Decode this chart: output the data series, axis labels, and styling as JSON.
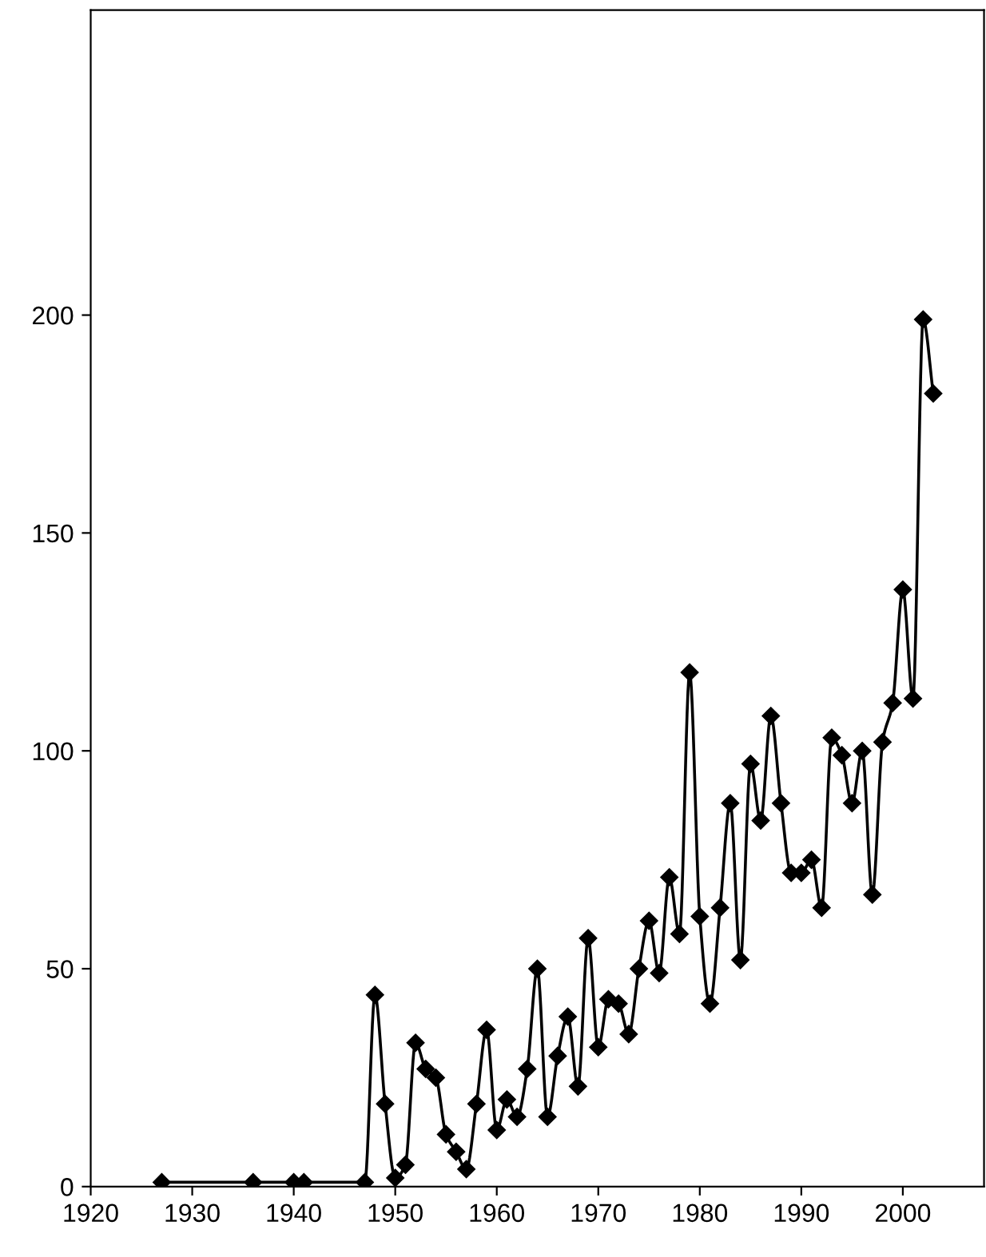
{
  "chart_data": {
    "type": "line",
    "marker": "diamond",
    "line_style": "solid",
    "grid": false,
    "legend": false,
    "xlim": [
      1920,
      2008
    ],
    "xticks": [
      1920,
      1930,
      1940,
      1950,
      1960,
      1970,
      1980,
      1990,
      2000
    ],
    "ylim": [
      0,
      270
    ],
    "yticks": [
      0,
      50,
      100,
      150,
      200
    ],
    "series": [
      {
        "color": "#000000",
        "x": [
          1927,
          1936,
          1940,
          1941,
          1947,
          1948,
          1949,
          1950,
          1951,
          1952,
          1953,
          1954,
          1955,
          1956,
          1957,
          1958,
          1959,
          1960,
          1961,
          1962,
          1963,
          1964,
          1965,
          1966,
          1967,
          1968,
          1969,
          1970,
          1971,
          1972,
          1973,
          1974,
          1975,
          1976,
          1977,
          1978,
          1979,
          1980,
          1981,
          1982,
          1983,
          1984,
          1985,
          1986,
          1987,
          1988,
          1989,
          1990,
          1991,
          1992,
          1993,
          1994,
          1995,
          1996,
          1997,
          1998,
          1999,
          2000,
          2001,
          2002,
          2003
        ],
        "values": [
          1,
          1,
          1,
          1,
          1,
          44,
          19,
          2,
          5,
          33,
          27,
          25,
          12,
          8,
          4,
          19,
          36,
          13,
          20,
          16,
          27,
          50,
          16,
          30,
          39,
          23,
          57,
          32,
          43,
          42,
          35,
          50,
          61,
          49,
          71,
          58,
          118,
          62,
          42,
          64,
          88,
          52,
          97,
          84,
          108,
          88,
          72,
          72,
          75,
          64,
          103,
          99,
          88,
          100,
          67,
          102,
          111,
          137,
          112,
          199,
          182
        ]
      }
    ]
  }
}
